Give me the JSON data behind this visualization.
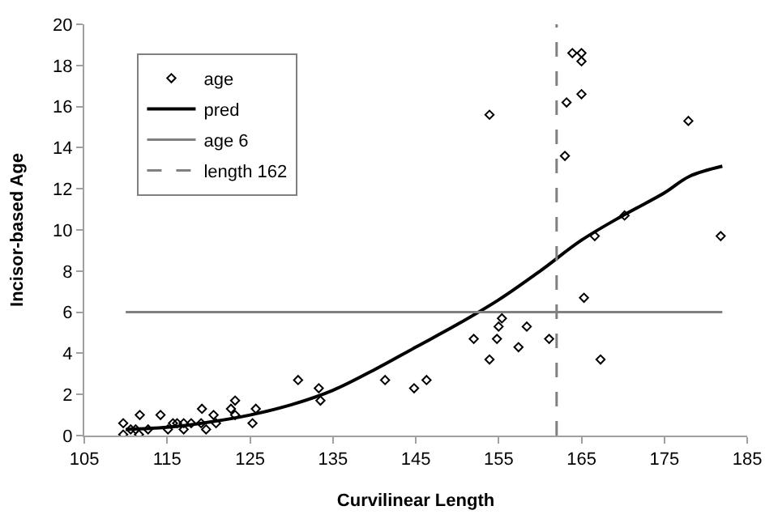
{
  "chart_data": {
    "type": "scatter",
    "xlabel": "Curvilinear Length",
    "ylabel": "Incisor-based Age",
    "xlim": [
      105,
      185
    ],
    "xticks": [
      105,
      115,
      125,
      135,
      145,
      155,
      165,
      175,
      185
    ],
    "ylim": [
      0,
      20
    ],
    "yticks": [
      0,
      2,
      4,
      6,
      8,
      10,
      12,
      14,
      16,
      18,
      20
    ],
    "legend": "top left",
    "series": [
      {
        "name": "age",
        "marker": "diamond",
        "color": "#000000",
        "x": [
          109.7,
          109.7,
          110.6,
          111.2,
          111.6,
          111.7,
          112.7,
          114.2,
          115.1,
          115.7,
          116.2,
          117,
          117,
          117.9,
          119.1,
          119.2,
          119.7,
          120.6,
          120.9,
          122.7,
          123.2,
          123.2,
          125.3,
          125.7,
          130.8,
          133.3,
          133.5,
          141.3,
          144.8,
          146.3,
          153.9,
          163.9,
          165,
          165,
          165,
          163.2,
          163,
          177.9,
          181.8,
          170.2,
          166.6,
          165.3,
          155.4,
          155,
          158.4,
          152,
          154.8,
          161.1,
          157.4,
          153.9,
          167.3
        ],
        "values": [
          0.6,
          0.05,
          0.3,
          0.3,
          0.05,
          1.0,
          0.3,
          1.0,
          0.3,
          0.6,
          0.6,
          0.6,
          0.3,
          0.6,
          0.6,
          1.3,
          0.3,
          1.0,
          0.6,
          1.3,
          1.7,
          1.0,
          0.6,
          1.3,
          2.7,
          2.3,
          1.7,
          2.7,
          2.3,
          2.7,
          15.6,
          18.6,
          18.6,
          18.2,
          16.6,
          16.2,
          13.6,
          15.3,
          9.7,
          10.7,
          9.7,
          6.7,
          5.7,
          5.3,
          5.3,
          4.7,
          4.7,
          4.7,
          4.3,
          3.7,
          3.7
        ]
      },
      {
        "name": "pred",
        "type": "line",
        "color": "#000000",
        "line_style": "solid",
        "x": [
          110,
          115,
          120,
          125,
          130,
          135,
          140,
          145,
          150,
          155,
          160,
          165,
          170,
          175,
          178,
          182
        ],
        "values": [
          0.3,
          0.4,
          0.65,
          1.0,
          1.5,
          2.2,
          3.2,
          4.3,
          5.4,
          6.6,
          8.0,
          9.5,
          10.7,
          11.8,
          12.6,
          13.1
        ]
      },
      {
        "name": "age 6",
        "type": "line",
        "color": "#808080",
        "line_style": "solid",
        "x": [
          110,
          182
        ],
        "values": [
          6,
          6
        ]
      },
      {
        "name": "length 162",
        "type": "line",
        "color": "#808080",
        "line_style": "dashed",
        "x": [
          162,
          162
        ],
        "values": [
          0,
          20
        ]
      }
    ]
  }
}
